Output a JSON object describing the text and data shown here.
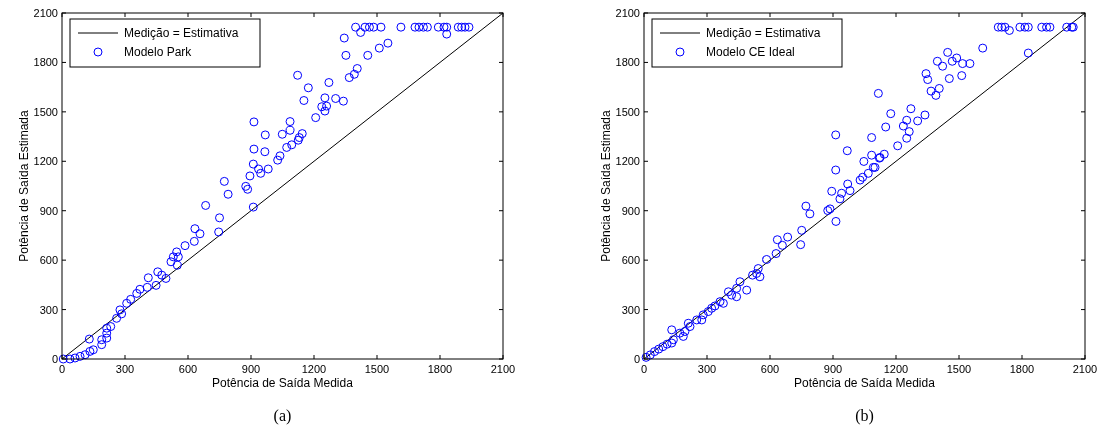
{
  "chart_data": [
    {
      "type": "scatter",
      "xlabel": "Potência de Saída Medida",
      "ylabel": "Potência de Saída Estimada",
      "annotations": [
        "(a)"
      ],
      "xlim": [
        0,
        2100
      ],
      "ylim": [
        0,
        2100
      ],
      "xticks": [
        0,
        300,
        600,
        900,
        1200,
        1500,
        1800,
        2100
      ],
      "yticks": [
        0,
        300,
        600,
        900,
        1200,
        1500,
        1800,
        2100
      ],
      "legend": "top left",
      "series": [
        {
          "name": "Medição = Estimativa",
          "type": "line",
          "color": "#000000",
          "marker": "none",
          "line_style": "solid",
          "x": [
            0,
            2100
          ],
          "values": [
            0,
            2100
          ]
        },
        {
          "name": "Modelo Park",
          "type": "scatter",
          "color": "#0000ff",
          "marker": "circle",
          "x": [
            6,
            38,
            62,
            86,
            110,
            133,
            149,
            130,
            189,
            189,
            213,
            213,
            213,
            232,
            260,
            284,
            276,
            308,
            327,
            356,
            371,
            406,
            411,
            448,
            456,
            475,
            495,
            519,
            530,
            546,
            554,
            549,
            586,
            630,
            633,
            657,
            684,
            746,
            750,
            773,
            791,
            875,
            884,
            911,
            895,
            911,
            914,
            914,
            936,
            946,
            968,
            966,
            982,
            1027,
            1038,
            1049,
            1070,
            1086,
            1086,
            1094,
            1122,
            1125,
            1130,
            1144,
            1152,
            1173,
            1208,
            1237,
            1252,
            1252,
            1260,
            1271,
            1303,
            1340,
            1344,
            1352,
            1368,
            1392,
            1406,
            1398,
            1422,
            1443,
            1456,
            1464,
            1484,
            1519,
            1511,
            1552,
            1614,
            1681,
            1700,
            1721,
            1740,
            1792,
            1819,
            1832,
            1832,
            1887,
            1903,
            1919,
            1938
          ],
          "values": [
            0,
            0,
            6,
            16,
            26,
            46,
            56,
            121,
            87,
            117,
            127,
            157,
            187,
            197,
            247,
            274,
            298,
            338,
            362,
            398,
            423,
            435,
            493,
            447,
            529,
            509,
            489,
            590,
            620,
            650,
            620,
            569,
            688,
            714,
            791,
            760,
            932,
            771,
            857,
            1078,
            1000,
            1048,
            1030,
            922,
            1111,
            1183,
            1274,
            1439,
            1153,
            1127,
            1360,
            1258,
            1153,
            1207,
            1233,
            1364,
            1284,
            1388,
            1441,
            1300,
            1722,
            1328,
            1344,
            1368,
            1569,
            1646,
            1465,
            1531,
            1585,
            1505,
            1535,
            1678,
            1581,
            1565,
            1948,
            1843,
            1708,
            1728,
            1763,
            2014,
            1982,
            2014,
            1843,
            2014,
            2014,
            2014,
            1887,
            1917,
            2014,
            2014,
            2014,
            2014,
            2014,
            2014,
            2014,
            2014,
            1972,
            2014,
            2014,
            2014,
            2014
          ]
        }
      ]
    },
    {
      "type": "scatter",
      "xlabel": "Potência de Saída Medida",
      "ylabel": "Potência de Saída Estimada",
      "annotations": [
        "(b)"
      ],
      "xlim": [
        0,
        2100
      ],
      "ylim": [
        0,
        2100
      ],
      "xticks": [
        0,
        300,
        600,
        900,
        1200,
        1500,
        1800,
        2100
      ],
      "yticks": [
        0,
        300,
        600,
        900,
        1200,
        1500,
        1800,
        2100
      ],
      "legend": "top left",
      "series": [
        {
          "name": "Medição = Estimativa",
          "type": "line",
          "color": "#000000",
          "marker": "none",
          "line_style": "solid",
          "x": [
            0,
            2100
          ],
          "values": [
            0,
            2100
          ]
        },
        {
          "name": "Modelo CE Ideal",
          "type": "scatter",
          "color": "#0000ff",
          "marker": "circle",
          "x": [
            10,
            30,
            50,
            70,
            90,
            110,
            132,
            132,
            140,
            171,
            187,
            195,
            211,
            219,
            251,
            275,
            282,
            306,
            322,
            338,
            362,
            378,
            402,
            417,
            441,
            441,
            457,
            489,
            517,
            536,
            544,
            552,
            584,
            629,
            635,
            659,
            684,
            746,
            751,
            771,
            790,
            875,
            886,
            894,
            914,
            913,
            913,
            933,
            941,
            970,
            968,
            981,
            1029,
            1041,
            1047,
            1068,
            1084,
            1084,
            1092,
            1116,
            1121,
            1100,
            1124,
            1144,
            1151,
            1175,
            1208,
            1235,
            1251,
            1251,
            1263,
            1271,
            1303,
            1338,
            1343,
            1351,
            1367,
            1390,
            1406,
            1397,
            1422,
            1446,
            1454,
            1468,
            1489,
            1513,
            1517,
            1552,
            1613,
            1687,
            1703,
            1719,
            1740,
            1790,
            1814,
            1830,
            1830,
            1894,
            1917,
            1933,
            2013,
            2037,
            2044
          ],
          "values": [
            10,
            25,
            45,
            60,
            75,
            90,
            97,
            177,
            117,
            157,
            137,
            167,
            217,
            197,
            237,
            237,
            268,
            288,
            308,
            322,
            348,
            338,
            408,
            388,
            378,
            429,
            469,
            418,
            509,
            519,
            549,
            499,
            604,
            640,
            724,
            690,
            740,
            694,
            781,
            928,
            881,
            901,
            911,
            1018,
            835,
            1147,
            1360,
            972,
            1006,
            1062,
            1264,
            1022,
            1086,
            1103,
            1199,
            1127,
            1237,
            1344,
            1163,
            1612,
            1219,
            1163,
            1223,
            1243,
            1408,
            1489,
            1294,
            1414,
            1449,
            1340,
            1380,
            1519,
            1445,
            1481,
            1732,
            1696,
            1626,
            1600,
            1642,
            1807,
            1777,
            1861,
            1702,
            1807,
            1827,
            1720,
            1793,
            1793,
            1887,
            2014,
            2014,
            2014,
            1994,
            2014,
            2014,
            2014,
            1857,
            2014,
            2014,
            2014,
            2014,
            2014,
            2014
          ]
        }
      ]
    }
  ]
}
